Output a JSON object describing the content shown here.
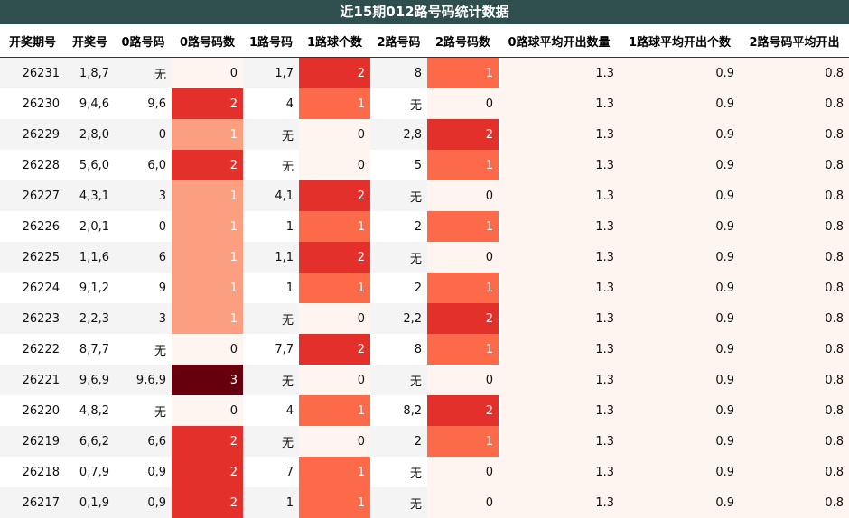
{
  "title": "近15期012路号码统计数据",
  "headers": [
    "开奖期号",
    "开奖号",
    "0路号码",
    "0路号码数",
    "1路号码",
    "1路球个数",
    "2路号码",
    "2路号码数",
    "0路球平均开出数量",
    "1路球平均开出个数",
    "2路号码平均开出"
  ],
  "rows": [
    [
      "26231",
      "1,8,7",
      "无",
      "0",
      "1,7",
      "2",
      "8",
      "1",
      "1.3",
      "0.9",
      "0.8"
    ],
    [
      "26230",
      "9,4,6",
      "9,6",
      "2",
      "4",
      "1",
      "无",
      "0",
      "1.3",
      "0.9",
      "0.8"
    ],
    [
      "26229",
      "2,8,0",
      "0",
      "1",
      "无",
      "0",
      "2,8",
      "2",
      "1.3",
      "0.9",
      "0.8"
    ],
    [
      "26228",
      "5,6,0",
      "6,0",
      "2",
      "无",
      "0",
      "5",
      "1",
      "1.3",
      "0.9",
      "0.8"
    ],
    [
      "26227",
      "4,3,1",
      "3",
      "1",
      "4,1",
      "2",
      "无",
      "0",
      "1.3",
      "0.9",
      "0.8"
    ],
    [
      "26226",
      "2,0,1",
      "0",
      "1",
      "1",
      "1",
      "2",
      "1",
      "1.3",
      "0.9",
      "0.8"
    ],
    [
      "26225",
      "1,1,6",
      "6",
      "1",
      "1,1",
      "2",
      "无",
      "0",
      "1.3",
      "0.9",
      "0.8"
    ],
    [
      "26224",
      "9,1,2",
      "9",
      "1",
      "1",
      "1",
      "2",
      "1",
      "1.3",
      "0.9",
      "0.8"
    ],
    [
      "26223",
      "2,2,3",
      "3",
      "1",
      "无",
      "0",
      "2,2",
      "2",
      "1.3",
      "0.9",
      "0.8"
    ],
    [
      "26222",
      "8,7,7",
      "无",
      "0",
      "7,7",
      "2",
      "8",
      "1",
      "1.3",
      "0.9",
      "0.8"
    ],
    [
      "26221",
      "9,6,9",
      "9,6,9",
      "3",
      "无",
      "0",
      "无",
      "0",
      "1.3",
      "0.9",
      "0.8"
    ],
    [
      "26220",
      "4,8,2",
      "无",
      "0",
      "4",
      "1",
      "8,2",
      "2",
      "1.3",
      "0.9",
      "0.8"
    ],
    [
      "26219",
      "6,6,2",
      "6,6",
      "2",
      "无",
      "0",
      "2",
      "1",
      "1.3",
      "0.9",
      "0.8"
    ],
    [
      "26218",
      "0,7,9",
      "0,9",
      "2",
      "7",
      "1",
      "无",
      "0",
      "1.3",
      "0.9",
      "0.8"
    ],
    [
      "26217",
      "0,1,9",
      "0,9",
      "2",
      "1",
      "1",
      "无",
      "0",
      "1.3",
      "0.9",
      "0.8"
    ]
  ],
  "colors": {
    "title_bg": "#2f4f4f",
    "heat_0": "#fff5f0",
    "heat_1_zero_col": "#fc9f81",
    "heat_1": "#fc6a4a",
    "heat_2": "#e3302a",
    "heat_3": "#67000d"
  }
}
